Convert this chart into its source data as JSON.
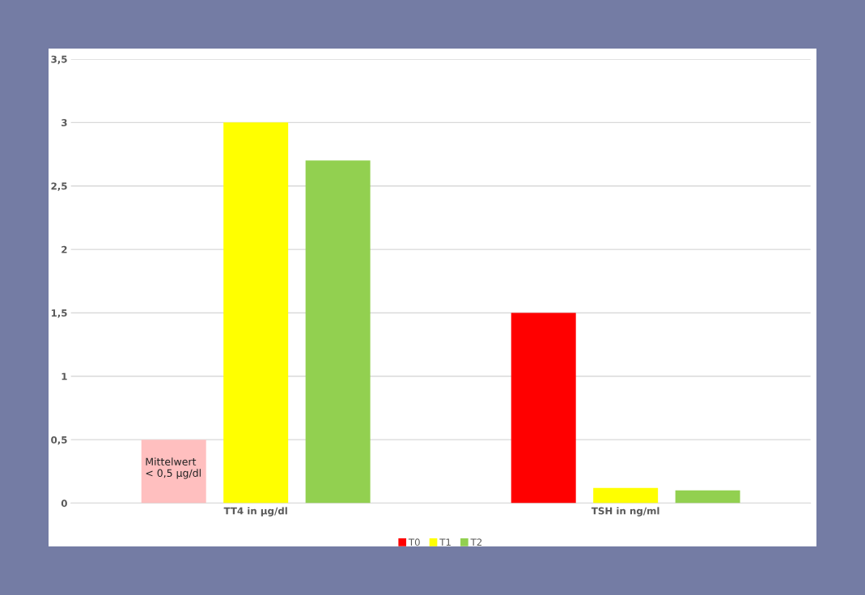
{
  "chart_data": {
    "type": "bar",
    "categories": [
      "TT4 in µg/dl",
      "TSH in ng/ml"
    ],
    "series": [
      {
        "name": "T0",
        "color": "#ff0000",
        "colors": [
          "#ffbfbf",
          "#ff0000"
        ],
        "values": [
          0.5,
          1.5
        ]
      },
      {
        "name": "T1",
        "color": "#ffff00",
        "values": [
          3.0,
          0.12
        ]
      },
      {
        "name": "T2",
        "color": "#92d050",
        "values": [
          2.7,
          0.1
        ]
      }
    ],
    "ylim": [
      0,
      3.5
    ],
    "yticks": [
      0,
      {
        "value": 0.5,
        "label": "0,5"
      },
      1,
      {
        "value": 1.5,
        "label": "1,5"
      },
      2,
      {
        "value": 2.5,
        "label": "2,5"
      },
      3,
      {
        "value": 3.5,
        "label": "3,5"
      }
    ],
    "annotations": [
      "Mittelwert\n< 0,5 µg/dl"
    ],
    "grid": "y",
    "legend": "bottom"
  }
}
